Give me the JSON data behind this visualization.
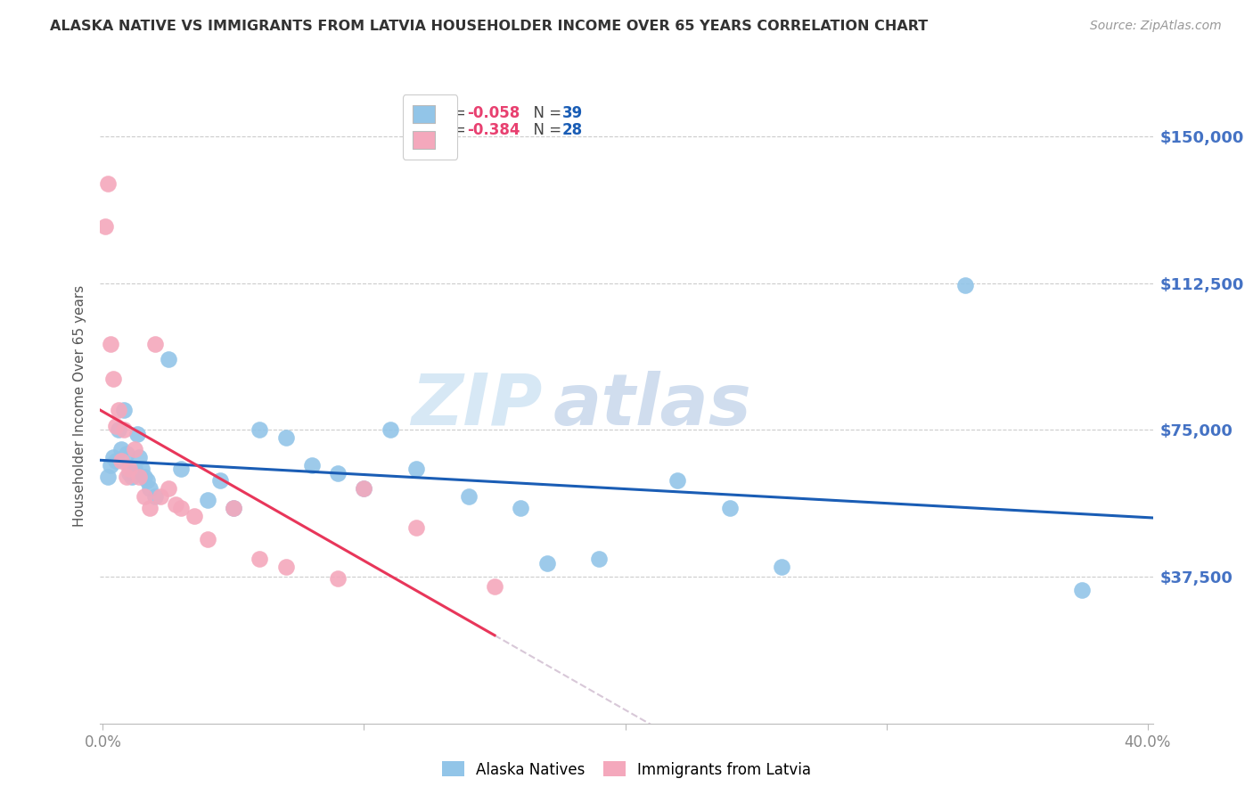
{
  "title": "ALASKA NATIVE VS IMMIGRANTS FROM LATVIA HOUSEHOLDER INCOME OVER 65 YEARS CORRELATION CHART",
  "source": "Source: ZipAtlas.com",
  "ylabel": "Householder Income Over 65 years",
  "ytick_labels": [
    "$150,000",
    "$112,500",
    "$75,000",
    "$37,500"
  ],
  "ytick_values": [
    150000,
    112500,
    75000,
    37500
  ],
  "ymin": 0,
  "ymax": 162500,
  "xmin": -0.001,
  "xmax": 0.402,
  "legend_blue_r": "-0.058",
  "legend_blue_n": "39",
  "legend_pink_r": "-0.384",
  "legend_pink_n": "28",
  "blue_color": "#92C5E8",
  "pink_color": "#F4A8BC",
  "blue_line_color": "#1A5DB5",
  "pink_line_color": "#E8365A",
  "pink_dashed_color": "#D8C8D8",
  "watermark_zip": "ZIP",
  "watermark_atlas": "atlas",
  "blue_scatter_x": [
    0.002,
    0.003,
    0.004,
    0.005,
    0.006,
    0.007,
    0.008,
    0.009,
    0.01,
    0.011,
    0.012,
    0.013,
    0.014,
    0.015,
    0.016,
    0.017,
    0.018,
    0.02,
    0.025,
    0.03,
    0.04,
    0.045,
    0.05,
    0.06,
    0.07,
    0.08,
    0.09,
    0.1,
    0.11,
    0.12,
    0.14,
    0.16,
    0.17,
    0.19,
    0.22,
    0.24,
    0.26,
    0.33,
    0.375
  ],
  "blue_scatter_y": [
    63000,
    66000,
    68000,
    67000,
    75000,
    70000,
    80000,
    69000,
    64000,
    63000,
    65000,
    74000,
    68000,
    65000,
    63000,
    62000,
    60000,
    58000,
    93000,
    65000,
    57000,
    62000,
    55000,
    75000,
    73000,
    66000,
    64000,
    60000,
    75000,
    65000,
    58000,
    55000,
    41000,
    42000,
    62000,
    55000,
    40000,
    112000,
    34000
  ],
  "pink_scatter_x": [
    0.001,
    0.002,
    0.003,
    0.004,
    0.005,
    0.006,
    0.007,
    0.008,
    0.009,
    0.01,
    0.012,
    0.014,
    0.016,
    0.018,
    0.02,
    0.022,
    0.025,
    0.028,
    0.03,
    0.035,
    0.04,
    0.05,
    0.06,
    0.07,
    0.09,
    0.1,
    0.12,
    0.15
  ],
  "pink_scatter_y": [
    127000,
    138000,
    97000,
    88000,
    76000,
    80000,
    67000,
    75000,
    63000,
    65000,
    70000,
    63000,
    58000,
    55000,
    97000,
    58000,
    60000,
    56000,
    55000,
    53000,
    47000,
    55000,
    42000,
    40000,
    37000,
    60000,
    50000,
    35000
  ]
}
